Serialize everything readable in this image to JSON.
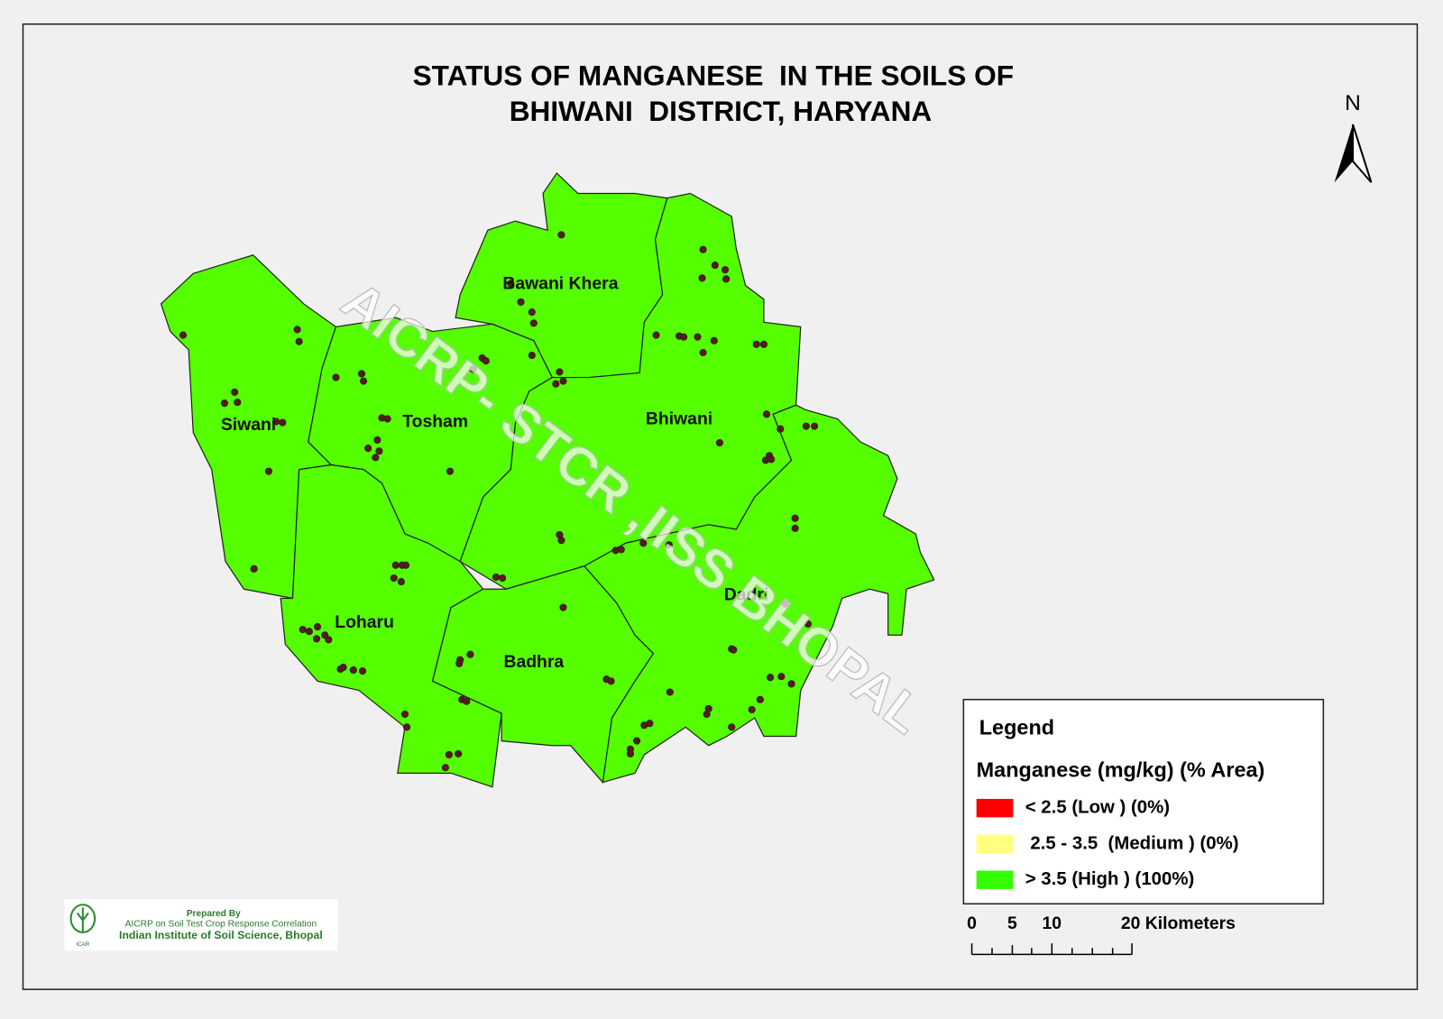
{
  "title": [
    "STATUS OF MANGANESE  IN THE SOILS OF",
    "BHIWANI  DISTRICT, HARYANA"
  ],
  "north": "N",
  "watermark": "AICRP- STCR ,IISS BHOPAL",
  "regions": [
    "Bawani Khera",
    "Siwani",
    "Tosham",
    "Bhiwani",
    "Loharu",
    "Badhra",
    "Dadri"
  ],
  "map_color": "#55ff00",
  "legend": {
    "title": "Legend",
    "subtitle": "Manganese (mg/kg) (% Area)",
    "items": [
      {
        "label": "< 2.5 (Low ) (0%)",
        "color": "#ff0000"
      },
      {
        "label": " 2.5 - 3.5  (Medium ) (0%)",
        "color": "#ffff80"
      },
      {
        "label": "> 3.5 (High ) (100%)",
        "color": "#33ff00"
      }
    ]
  },
  "scale_bar": [
    "0",
    "5",
    "10",
    "20 Kilometers"
  ],
  "credit": [
    "Prepared By",
    "AICRP on Soil Test Crop Response Correlation",
    "Indian Institute of Soil Science, Bhopal"
  ]
}
